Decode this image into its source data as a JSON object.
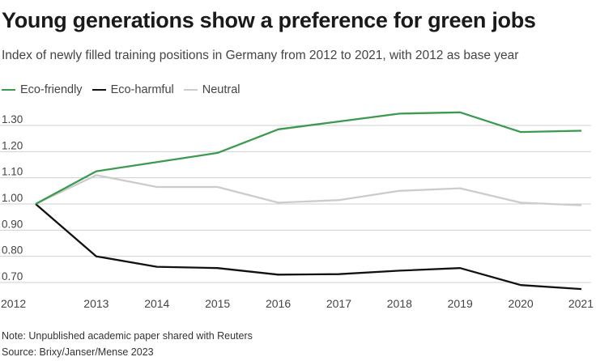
{
  "chart_data": {
    "type": "line",
    "title": "Young generations show a preference for green jobs",
    "subtitle": "Index of newly filled training positions in Germany from 2012 to 2021, with 2012 as base year",
    "x": [
      "2012",
      "2013",
      "2014",
      "2015",
      "2016",
      "2017",
      "2018",
      "2019",
      "2020",
      "2021"
    ],
    "yticks": [
      0.7,
      0.8,
      0.9,
      1.0,
      1.1,
      1.2,
      1.3
    ],
    "ytick_labels": [
      "0.70",
      "0.80",
      "0.90",
      "1.00",
      "1.10",
      "1.20",
      "1.30"
    ],
    "ylim": [
      0.68,
      1.36
    ],
    "legend_position": "top-left",
    "grid": true,
    "series": [
      {
        "name": "Eco-friendly",
        "color": "#3a9a4e",
        "values": [
          1.0,
          1.125,
          1.16,
          1.195,
          1.285,
          1.315,
          1.345,
          1.35,
          1.275,
          1.28
        ]
      },
      {
        "name": "Eco-harmful",
        "color": "#111111",
        "values": [
          1.0,
          0.8,
          0.76,
          0.755,
          0.73,
          0.732,
          0.745,
          0.755,
          0.69,
          0.675
        ]
      },
      {
        "name": "Neutral",
        "color": "#cccccc",
        "values": [
          1.0,
          1.11,
          1.065,
          1.065,
          1.005,
          1.015,
          1.05,
          1.06,
          1.005,
          0.995
        ]
      }
    ]
  },
  "footer": {
    "note": "Note: Unpublished academic paper shared with Reuters",
    "source": "Source: Brixy/Janser/Mense 2023"
  }
}
